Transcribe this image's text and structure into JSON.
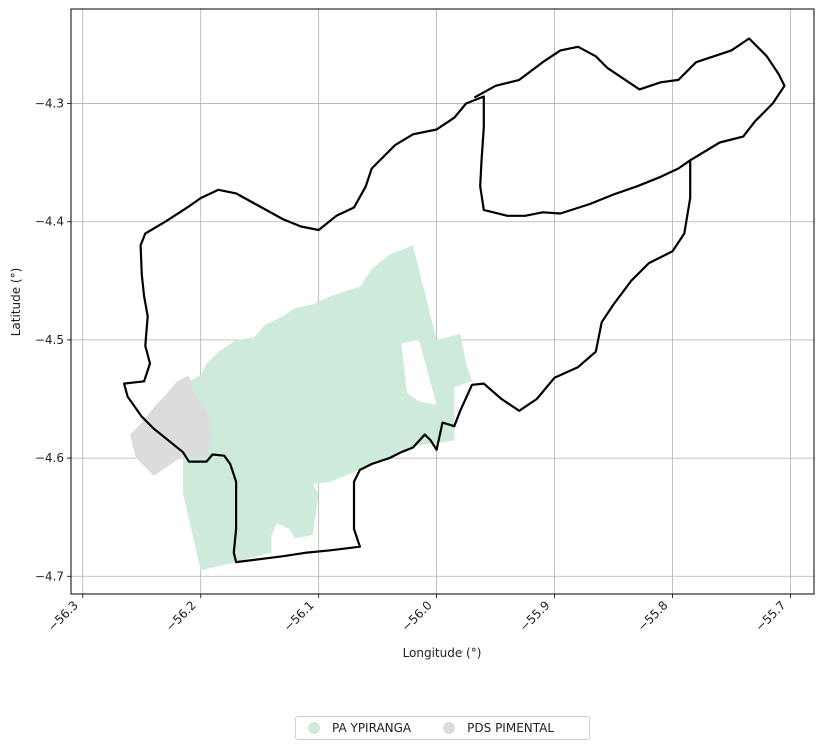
{
  "chart_data": {
    "type": "map",
    "xlabel": "Longitude (°)",
    "ylabel": "Latitude (°)",
    "xlim": [
      -56.31,
      -55.68
    ],
    "ylim": [
      -4.715,
      -4.22
    ],
    "x_ticks": [
      -56.3,
      -56.2,
      -56.1,
      -56.0,
      -55.9,
      -55.8,
      -55.7
    ],
    "x_tick_labels": [
      "−56.3",
      "−56.2",
      "−56.1",
      "−56.0",
      "−55.9",
      "−55.8",
      "−55.7"
    ],
    "y_ticks": [
      -4.3,
      -4.4,
      -4.5,
      -4.6,
      -4.7
    ],
    "y_tick_labels": [
      "−4.3",
      "−4.4",
      "−4.5",
      "−4.6",
      "−4.7"
    ],
    "grid": true,
    "legend_position": "bottom-center",
    "outline": {
      "color": "#000000",
      "points": [
        [
          -56.265,
          -4.537
        ],
        [
          -56.248,
          -4.535
        ],
        [
          -56.243,
          -4.52
        ],
        [
          -56.247,
          -4.505
        ],
        [
          -56.245,
          -4.48
        ],
        [
          -56.248,
          -4.463
        ],
        [
          -56.25,
          -4.445
        ],
        [
          -56.251,
          -4.42
        ],
        [
          -56.247,
          -4.41
        ],
        [
          -56.23,
          -4.4
        ],
        [
          -56.21,
          -4.387
        ],
        [
          -56.2,
          -4.38
        ],
        [
          -56.185,
          -4.373
        ],
        [
          -56.17,
          -4.376
        ],
        [
          -56.15,
          -4.387
        ],
        [
          -56.13,
          -4.398
        ],
        [
          -56.115,
          -4.404
        ],
        [
          -56.1,
          -4.407
        ],
        [
          -56.085,
          -4.395
        ],
        [
          -56.07,
          -4.388
        ],
        [
          -56.06,
          -4.37
        ],
        [
          -56.055,
          -4.355
        ],
        [
          -56.045,
          -4.345
        ],
        [
          -56.035,
          -4.335
        ],
        [
          -56.02,
          -4.326
        ],
        [
          -56.0,
          -4.322
        ],
        [
          -55.985,
          -4.312
        ],
        [
          -55.975,
          -4.3
        ],
        [
          -55.96,
          -4.294
        ],
        [
          -55.96,
          -4.32
        ],
        [
          -55.962,
          -4.35
        ],
        [
          -55.963,
          -4.37
        ],
        [
          -55.96,
          -4.39
        ],
        [
          -55.94,
          -4.395
        ],
        [
          -55.925,
          -4.395
        ],
        [
          -55.91,
          -4.392
        ],
        [
          -55.895,
          -4.393
        ],
        [
          -55.87,
          -4.385
        ],
        [
          -55.85,
          -4.377
        ],
        [
          -55.83,
          -4.37
        ],
        [
          -55.81,
          -4.362
        ],
        [
          -55.795,
          -4.355
        ],
        [
          -55.785,
          -4.348
        ],
        [
          -55.785,
          -4.38
        ],
        [
          -55.79,
          -4.41
        ],
        [
          -55.8,
          -4.425
        ],
        [
          -55.82,
          -4.435
        ],
        [
          -55.835,
          -4.45
        ],
        [
          -55.85,
          -4.47
        ],
        [
          -55.86,
          -4.485
        ],
        [
          -55.865,
          -4.51
        ],
        [
          -55.88,
          -4.523
        ],
        [
          -55.9,
          -4.532
        ],
        [
          -55.915,
          -4.55
        ],
        [
          -55.93,
          -4.56
        ],
        [
          -55.945,
          -4.55
        ],
        [
          -55.96,
          -4.537
        ],
        [
          -55.97,
          -4.538
        ],
        [
          -55.98,
          -4.56
        ],
        [
          -55.985,
          -4.573
        ],
        [
          -55.995,
          -4.57
        ],
        [
          -56.0,
          -4.593
        ],
        [
          -56.005,
          -4.585
        ],
        [
          -56.01,
          -4.58
        ],
        [
          -56.02,
          -4.591
        ],
        [
          -56.03,
          -4.595
        ],
        [
          -56.04,
          -4.6
        ],
        [
          -56.055,
          -4.605
        ],
        [
          -56.065,
          -4.61
        ],
        [
          -56.07,
          -4.62
        ],
        [
          -56.07,
          -4.645
        ],
        [
          -56.07,
          -4.66
        ],
        [
          -56.065,
          -4.675
        ],
        [
          -56.09,
          -4.678
        ],
        [
          -56.11,
          -4.68
        ],
        [
          -56.13,
          -4.683
        ],
        [
          -56.17,
          -4.688
        ],
        [
          -56.172,
          -4.68
        ],
        [
          -56.17,
          -4.66
        ],
        [
          -56.17,
          -4.64
        ],
        [
          -56.17,
          -4.62
        ],
        [
          -56.175,
          -4.605
        ],
        [
          -56.18,
          -4.598
        ],
        [
          -56.19,
          -4.597
        ],
        [
          -56.195,
          -4.603
        ],
        [
          -56.21,
          -4.603
        ],
        [
          -56.215,
          -4.595
        ],
        [
          -56.225,
          -4.587
        ],
        [
          -56.24,
          -4.575
        ],
        [
          -56.25,
          -4.565
        ],
        [
          -56.262,
          -4.548
        ],
        [
          -56.265,
          -4.537
        ]
      ]
    },
    "outline_east": {
      "color": "#000000",
      "points": [
        [
          -55.968,
          -4.295
        ],
        [
          -55.95,
          -4.285
        ],
        [
          -55.93,
          -4.28
        ],
        [
          -55.91,
          -4.265
        ],
        [
          -55.895,
          -4.255
        ],
        [
          -55.88,
          -4.252
        ],
        [
          -55.865,
          -4.26
        ],
        [
          -55.855,
          -4.27
        ],
        [
          -55.84,
          -4.28
        ],
        [
          -55.828,
          -4.288
        ],
        [
          -55.81,
          -4.282
        ],
        [
          -55.795,
          -4.28
        ],
        [
          -55.78,
          -4.265
        ],
        [
          -55.765,
          -4.26
        ],
        [
          -55.75,
          -4.255
        ],
        [
          -55.735,
          -4.245
        ],
        [
          -55.72,
          -4.26
        ],
        [
          -55.71,
          -4.275
        ],
        [
          -55.705,
          -4.285
        ],
        [
          -55.715,
          -4.3
        ],
        [
          -55.73,
          -4.315
        ],
        [
          -55.74,
          -4.328
        ],
        [
          -55.76,
          -4.333
        ],
        [
          -55.785,
          -4.348
        ]
      ]
    },
    "series": [
      {
        "name": "PA YPIRANGA",
        "color": "#cdeadb",
        "polygons": [
          [
            [
              -56.195,
              -4.52
            ],
            [
              -56.185,
              -4.51
            ],
            [
              -56.17,
              -4.5
            ],
            [
              -56.155,
              -4.498
            ],
            [
              -56.145,
              -4.487
            ],
            [
              -56.13,
              -4.48
            ],
            [
              -56.12,
              -4.473
            ],
            [
              -56.105,
              -4.47
            ],
            [
              -56.09,
              -4.463
            ],
            [
              -56.075,
              -4.458
            ],
            [
              -56.065,
              -4.455
            ],
            [
              -56.055,
              -4.44
            ],
            [
              -56.04,
              -4.428
            ],
            [
              -56.02,
              -4.42
            ],
            [
              -56.0,
              -4.5
            ],
            [
              -55.98,
              -4.495
            ],
            [
              -55.975,
              -4.52
            ],
            [
              -55.97,
              -4.535
            ],
            [
              -55.985,
              -4.54
            ],
            [
              -55.985,
              -4.585
            ],
            [
              -56.02,
              -4.59
            ],
            [
              -56.04,
              -4.6
            ],
            [
              -56.055,
              -4.605
            ],
            [
              -56.07,
              -4.612
            ],
            [
              -56.09,
              -4.62
            ],
            [
              -56.105,
              -4.622
            ],
            [
              -56.1,
              -4.63
            ],
            [
              -56.105,
              -4.665
            ],
            [
              -56.12,
              -4.668
            ],
            [
              -56.125,
              -4.66
            ],
            [
              -56.135,
              -4.655
            ],
            [
              -56.14,
              -4.665
            ],
            [
              -56.14,
              -4.68
            ],
            [
              -56.16,
              -4.685
            ],
            [
              -56.17,
              -4.688
            ],
            [
              -56.2,
              -4.695
            ],
            [
              -56.215,
              -4.63
            ],
            [
              -56.215,
              -4.59
            ],
            [
              -56.225,
              -4.545
            ],
            [
              -56.21,
              -4.535
            ],
            [
              -56.2,
              -4.53
            ],
            [
              -56.195,
              -4.52
            ]
          ]
        ],
        "holes": [
          [
            [
              -56.03,
              -4.503
            ],
            [
              -56.015,
              -4.5
            ],
            [
              -56.0,
              -4.555
            ],
            [
              -56.015,
              -4.552
            ],
            [
              -56.025,
              -4.545
            ],
            [
              -56.03,
              -4.503
            ]
          ]
        ]
      },
      {
        "name": "PDS PIMENTAL",
        "color": "#dcdcdc",
        "polygons": [
          [
            [
              -56.25,
              -4.57
            ],
            [
              -56.238,
              -4.555
            ],
            [
              -56.23,
              -4.547
            ],
            [
              -56.22,
              -4.535
            ],
            [
              -56.21,
              -4.53
            ],
            [
              -56.205,
              -4.547
            ],
            [
              -56.195,
              -4.56
            ],
            [
              -56.19,
              -4.58
            ],
            [
              -56.195,
              -4.6
            ],
            [
              -56.215,
              -4.598
            ],
            [
              -56.225,
              -4.605
            ],
            [
              -56.24,
              -4.615
            ],
            [
              -56.255,
              -4.6
            ],
            [
              -56.26,
              -4.58
            ],
            [
              -56.25,
              -4.57
            ]
          ]
        ]
      }
    ]
  }
}
